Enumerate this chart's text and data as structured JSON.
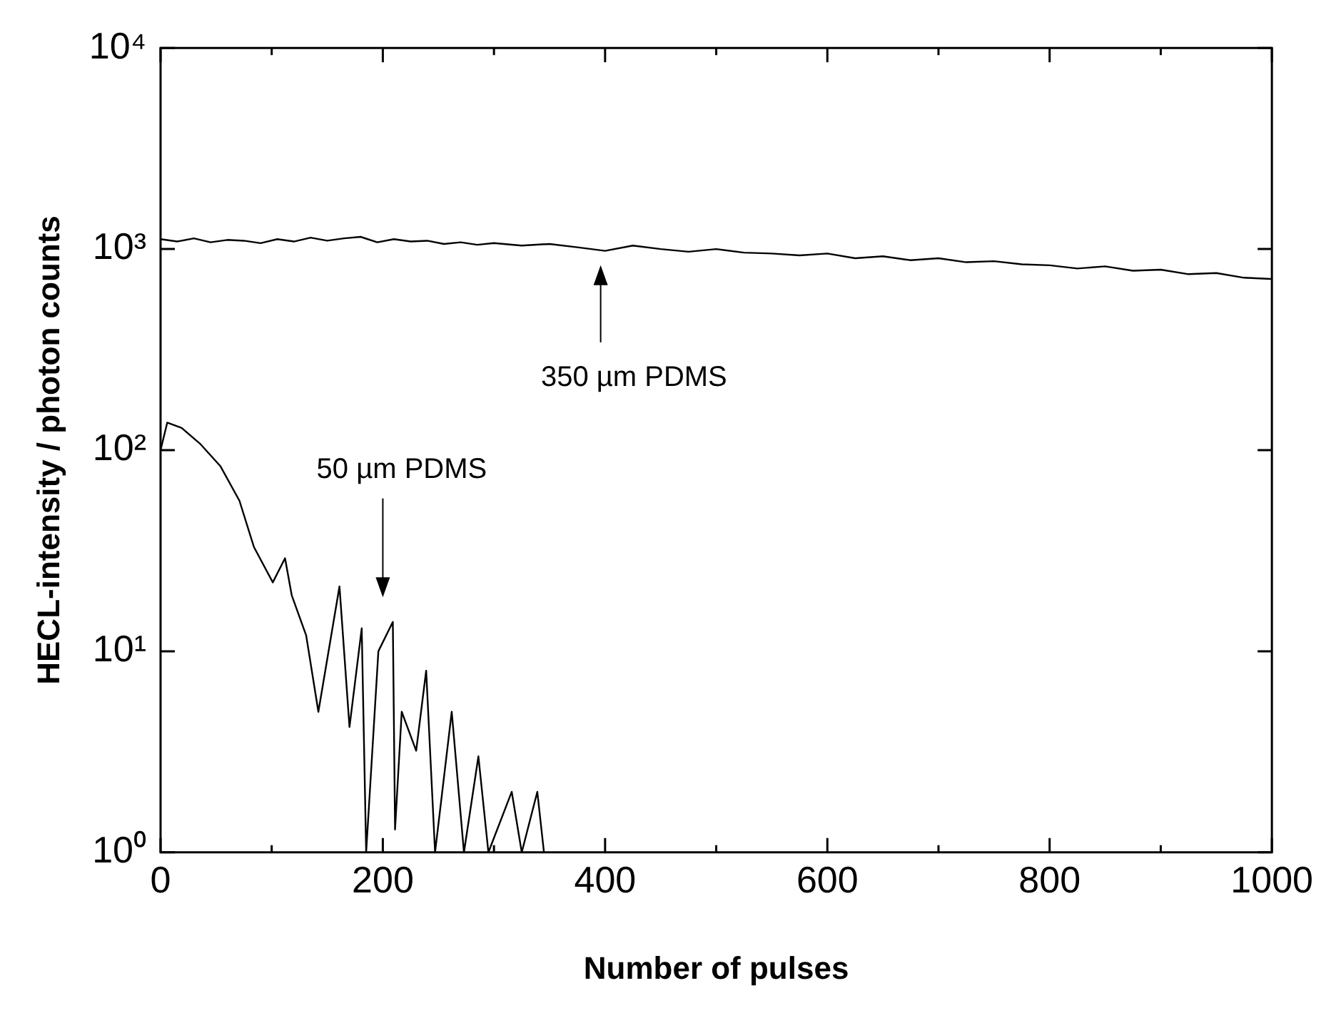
{
  "chart_data": {
    "type": "line",
    "xlabel": "Number of pulses",
    "ylabel": "HECL-intensity / photon counts",
    "log": "y",
    "grid": false,
    "legend": false,
    "marker": "none",
    "line_style": "solid",
    "xlim": [
      0,
      1000
    ],
    "xticks": [
      0,
      {
        "value": 100,
        "label": null
      },
      200,
      {
        "value": 300,
        "label": null
      },
      400,
      {
        "value": 500,
        "label": null
      },
      600,
      {
        "value": 700,
        "label": null
      },
      800,
      {
        "value": 900,
        "label": null
      },
      1000
    ],
    "ylim": [
      1,
      10000
    ],
    "yticks": [
      {
        "value": 1,
        "label": "10⁰"
      },
      {
        "value": 10,
        "label": "10¹"
      },
      {
        "value": 100,
        "label": "10²"
      },
      {
        "value": 1000,
        "label": "10³"
      },
      {
        "value": 10000,
        "label": "10⁴"
      }
    ],
    "annotations": [
      "350 µm PDMS",
      "50 µm PDMS"
    ],
    "series": [
      {
        "color": "#000000",
        "x": [
          0,
          15,
          30,
          45,
          60,
          75,
          90,
          105,
          120,
          135,
          150,
          165,
          180,
          195,
          210,
          225,
          240,
          255,
          270,
          285,
          300,
          325,
          350,
          375,
          400,
          425,
          450,
          475,
          500,
          525,
          550,
          575,
          600,
          625,
          650,
          675,
          700,
          725,
          750,
          775,
          800,
          825,
          850,
          875,
          900,
          925,
          950,
          975,
          1000
        ],
        "values": [
          1120,
          1090,
          1130,
          1080,
          1110,
          1100,
          1070,
          1120,
          1090,
          1140,
          1100,
          1130,
          1150,
          1080,
          1120,
          1090,
          1100,
          1060,
          1080,
          1050,
          1070,
          1040,
          1060,
          1020,
          980,
          1040,
          1000,
          970,
          1000,
          960,
          950,
          930,
          950,
          900,
          920,
          880,
          900,
          860,
          870,
          840,
          830,
          800,
          820,
          780,
          790,
          750,
          760,
          720,
          710
        ]
      },
      {
        "color": "#000000",
        "x": [
          0,
          6,
          19,
          36,
          54,
          71,
          84,
          101,
          112,
          118,
          131,
          142,
          161,
          170,
          181,
          185,
          196,
          209,
          211,
          217,
          230,
          239,
          247,
          262,
          273,
          286,
          295,
          316,
          325,
          339,
          345
        ],
        "values": [
          100,
          137,
          129,
          107,
          83,
          56,
          33,
          22,
          29,
          19,
          12,
          5,
          21,
          4.2,
          13,
          1,
          10,
          14,
          1.3,
          5,
          3.2,
          8,
          1,
          5,
          1,
          3,
          1,
          2,
          1,
          2,
          1
        ]
      }
    ]
  }
}
